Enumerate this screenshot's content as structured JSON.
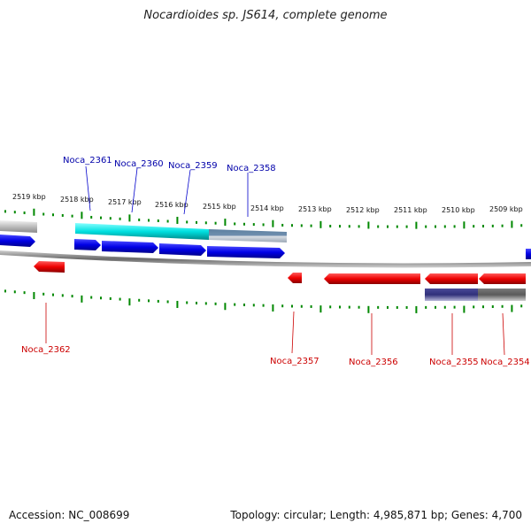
{
  "title": "Nocardioides sp. JS614, complete genome",
  "footer": {
    "accession": "Accession: NC_008699",
    "summary": "Topology: circular; Length: 4,985,871 bp; Genes: 4,700"
  },
  "colors": {
    "forward_gene": "#0000ee",
    "reverse_gene": "#ee0000",
    "forward_label": "#0000aa",
    "reverse_label": "#cc0000",
    "tick": "#008800",
    "backbone": "#777777",
    "cyan_feature": "#00e0e0"
  },
  "scale_labels": [
    "2519 kbp",
    "2518 kbp",
    "2517 kbp",
    "2516 kbp",
    "2515 kbp",
    "2514 kbp",
    "2513 kbp",
    "2512 kbp",
    "2511 kbp",
    "2510 kbp",
    "2509 kbp"
  ],
  "forward_genes": [
    "Noca_2361",
    "Noca_2360",
    "Noca_2359",
    "Noca_2358"
  ],
  "reverse_genes": [
    "Noca_2362",
    "Noca_2357",
    "Noca_2356",
    "Noca_2355",
    "Noca_2354"
  ]
}
